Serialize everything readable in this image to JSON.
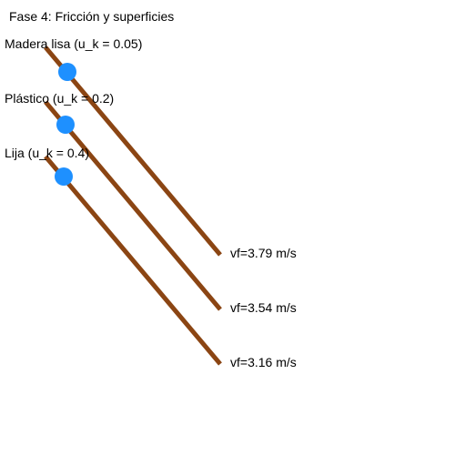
{
  "title": "Fase 4: Fricción y superficies",
  "colors": {
    "background": "#ffffff",
    "ramp": "#8B4513",
    "ball": "#1E90FF",
    "text": "#000000"
  },
  "ramps": [
    {
      "label": "Madera lisa (u_k = 0.05)",
      "final_velocity": "vf=3.79 m/s"
    },
    {
      "label": "Plástico (u_k = 0.2)",
      "final_velocity": "vf=3.54 m/s"
    },
    {
      "label": "Lija (u_k = 0.4)",
      "final_velocity": "vf=3.16 m/s"
    }
  ]
}
